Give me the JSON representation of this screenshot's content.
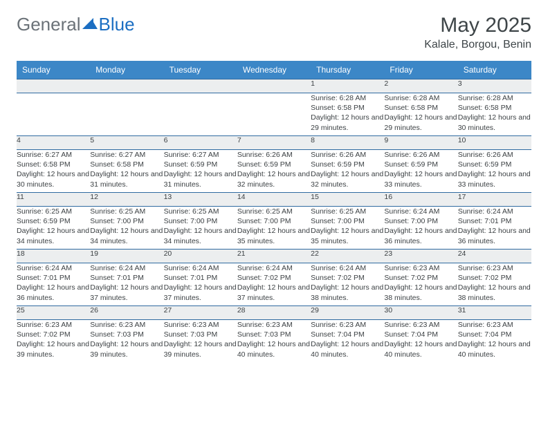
{
  "logo": {
    "text1": "General",
    "text2": "Blue"
  },
  "title": "May 2025",
  "location": "Kalale, Borgou, Benin",
  "colors": {
    "header_bg": "#3c87c7",
    "header_text": "#ffffff",
    "daynum_bg": "#eceeef",
    "rule": "#2f6aa0",
    "text": "#3a3f42",
    "logo_gray": "#6b7278",
    "logo_blue": "#1b6ec2"
  },
  "weekdays": [
    "Sunday",
    "Monday",
    "Tuesday",
    "Wednesday",
    "Thursday",
    "Friday",
    "Saturday"
  ],
  "weeks": [
    [
      null,
      null,
      null,
      null,
      {
        "n": "1",
        "rise": "6:28 AM",
        "set": "6:58 PM",
        "dl": "12 hours and 29 minutes."
      },
      {
        "n": "2",
        "rise": "6:28 AM",
        "set": "6:58 PM",
        "dl": "12 hours and 29 minutes."
      },
      {
        "n": "3",
        "rise": "6:28 AM",
        "set": "6:58 PM",
        "dl": "12 hours and 30 minutes."
      }
    ],
    [
      {
        "n": "4",
        "rise": "6:27 AM",
        "set": "6:58 PM",
        "dl": "12 hours and 30 minutes."
      },
      {
        "n": "5",
        "rise": "6:27 AM",
        "set": "6:58 PM",
        "dl": "12 hours and 31 minutes."
      },
      {
        "n": "6",
        "rise": "6:27 AM",
        "set": "6:59 PM",
        "dl": "12 hours and 31 minutes."
      },
      {
        "n": "7",
        "rise": "6:26 AM",
        "set": "6:59 PM",
        "dl": "12 hours and 32 minutes."
      },
      {
        "n": "8",
        "rise": "6:26 AM",
        "set": "6:59 PM",
        "dl": "12 hours and 32 minutes."
      },
      {
        "n": "9",
        "rise": "6:26 AM",
        "set": "6:59 PM",
        "dl": "12 hours and 33 minutes."
      },
      {
        "n": "10",
        "rise": "6:26 AM",
        "set": "6:59 PM",
        "dl": "12 hours and 33 minutes."
      }
    ],
    [
      {
        "n": "11",
        "rise": "6:25 AM",
        "set": "6:59 PM",
        "dl": "12 hours and 34 minutes."
      },
      {
        "n": "12",
        "rise": "6:25 AM",
        "set": "7:00 PM",
        "dl": "12 hours and 34 minutes."
      },
      {
        "n": "13",
        "rise": "6:25 AM",
        "set": "7:00 PM",
        "dl": "12 hours and 34 minutes."
      },
      {
        "n": "14",
        "rise": "6:25 AM",
        "set": "7:00 PM",
        "dl": "12 hours and 35 minutes."
      },
      {
        "n": "15",
        "rise": "6:25 AM",
        "set": "7:00 PM",
        "dl": "12 hours and 35 minutes."
      },
      {
        "n": "16",
        "rise": "6:24 AM",
        "set": "7:00 PM",
        "dl": "12 hours and 36 minutes."
      },
      {
        "n": "17",
        "rise": "6:24 AM",
        "set": "7:01 PM",
        "dl": "12 hours and 36 minutes."
      }
    ],
    [
      {
        "n": "18",
        "rise": "6:24 AM",
        "set": "7:01 PM",
        "dl": "12 hours and 36 minutes."
      },
      {
        "n": "19",
        "rise": "6:24 AM",
        "set": "7:01 PM",
        "dl": "12 hours and 37 minutes."
      },
      {
        "n": "20",
        "rise": "6:24 AM",
        "set": "7:01 PM",
        "dl": "12 hours and 37 minutes."
      },
      {
        "n": "21",
        "rise": "6:24 AM",
        "set": "7:02 PM",
        "dl": "12 hours and 37 minutes."
      },
      {
        "n": "22",
        "rise": "6:24 AM",
        "set": "7:02 PM",
        "dl": "12 hours and 38 minutes."
      },
      {
        "n": "23",
        "rise": "6:23 AM",
        "set": "7:02 PM",
        "dl": "12 hours and 38 minutes."
      },
      {
        "n": "24",
        "rise": "6:23 AM",
        "set": "7:02 PM",
        "dl": "12 hours and 38 minutes."
      }
    ],
    [
      {
        "n": "25",
        "rise": "6:23 AM",
        "set": "7:02 PM",
        "dl": "12 hours and 39 minutes."
      },
      {
        "n": "26",
        "rise": "6:23 AM",
        "set": "7:03 PM",
        "dl": "12 hours and 39 minutes."
      },
      {
        "n": "27",
        "rise": "6:23 AM",
        "set": "7:03 PM",
        "dl": "12 hours and 39 minutes."
      },
      {
        "n": "28",
        "rise": "6:23 AM",
        "set": "7:03 PM",
        "dl": "12 hours and 40 minutes."
      },
      {
        "n": "29",
        "rise": "6:23 AM",
        "set": "7:04 PM",
        "dl": "12 hours and 40 minutes."
      },
      {
        "n": "30",
        "rise": "6:23 AM",
        "set": "7:04 PM",
        "dl": "12 hours and 40 minutes."
      },
      {
        "n": "31",
        "rise": "6:23 AM",
        "set": "7:04 PM",
        "dl": "12 hours and 40 minutes."
      }
    ]
  ],
  "labels": {
    "sunrise": "Sunrise: ",
    "sunset": "Sunset: ",
    "daylight": "Daylight: "
  }
}
